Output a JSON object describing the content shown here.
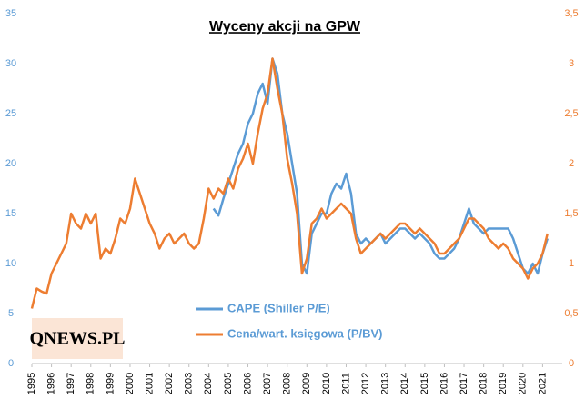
{
  "chart_data": {
    "type": "line",
    "title": "Wyceny akcji na GPW",
    "watermark": "QNEWS.PL",
    "x": [
      1995,
      1995.25,
      1995.5,
      1995.75,
      1996,
      1996.25,
      1996.5,
      1996.75,
      1997,
      1997.25,
      1997.5,
      1997.75,
      1998,
      1998.25,
      1998.5,
      1998.75,
      1999,
      1999.25,
      1999.5,
      1999.75,
      2000,
      2000.25,
      2000.5,
      2000.75,
      2001,
      2001.25,
      2001.5,
      2001.75,
      2002,
      2002.25,
      2002.5,
      2002.75,
      2003,
      2003.25,
      2003.5,
      2003.75,
      2004,
      2004.25,
      2004.5,
      2004.75,
      2005,
      2005.25,
      2005.5,
      2005.75,
      2006,
      2006.25,
      2006.5,
      2006.75,
      2007,
      2007.25,
      2007.5,
      2007.75,
      2008,
      2008.25,
      2008.5,
      2008.75,
      2009,
      2009.25,
      2009.5,
      2009.75,
      2010,
      2010.25,
      2010.5,
      2010.75,
      2011,
      2011.25,
      2011.5,
      2011.75,
      2012,
      2012.25,
      2012.5,
      2012.75,
      2013,
      2013.25,
      2013.5,
      2013.75,
      2014,
      2014.25,
      2014.5,
      2014.75,
      2015,
      2015.25,
      2015.5,
      2015.75,
      2016,
      2016.25,
      2016.5,
      2016.75,
      2017,
      2017.25,
      2017.5,
      2017.75,
      2018,
      2018.25,
      2018.5,
      2018.75,
      2019,
      2019.25,
      2019.5,
      2019.75,
      2020,
      2020.25,
      2020.5,
      2020.75,
      2021,
      2021.25
    ],
    "series": [
      {
        "name": "CAPE (Shiller P/E)",
        "color": "#5b9bd5",
        "axis": "y",
        "values": [
          null,
          null,
          null,
          null,
          null,
          null,
          null,
          null,
          null,
          null,
          null,
          null,
          null,
          null,
          null,
          null,
          null,
          null,
          null,
          null,
          null,
          null,
          null,
          null,
          null,
          null,
          null,
          null,
          null,
          null,
          null,
          null,
          null,
          null,
          null,
          null,
          null,
          15.5,
          14.8,
          16.5,
          18,
          19.5,
          21,
          22,
          24,
          25,
          27,
          28,
          26,
          30.5,
          29,
          25,
          23,
          20,
          17,
          10,
          9,
          13,
          14,
          15,
          15,
          17,
          18,
          17.5,
          19,
          17,
          13,
          12,
          12.5,
          12,
          12.5,
          13,
          12,
          12.5,
          13,
          13.5,
          13.5,
          13,
          12.5,
          13,
          12.5,
          12,
          11,
          10.5,
          10.5,
          11,
          11.5,
          12.5,
          14,
          15.5,
          14,
          13.5,
          13,
          13.5,
          13.5,
          13.5,
          13.5,
          13.5,
          12.5,
          11,
          9.5,
          9,
          10,
          9,
          11,
          12.5
        ]
      },
      {
        "name": "Cena/wart. księgowa (P/BV)",
        "color": "#ed7d31",
        "axis": "y2",
        "values": [
          0.55,
          0.75,
          0.72,
          0.7,
          0.9,
          1.0,
          1.1,
          1.2,
          1.5,
          1.4,
          1.35,
          1.5,
          1.4,
          1.5,
          1.05,
          1.15,
          1.1,
          1.25,
          1.45,
          1.4,
          1.55,
          1.85,
          1.7,
          1.55,
          1.4,
          1.3,
          1.15,
          1.25,
          1.3,
          1.2,
          1.25,
          1.3,
          1.2,
          1.15,
          1.2,
          1.45,
          1.75,
          1.65,
          1.75,
          1.7,
          1.85,
          1.75,
          1.95,
          2.05,
          2.2,
          2.0,
          2.3,
          2.55,
          2.7,
          3.05,
          2.75,
          2.5,
          2.05,
          1.8,
          1.5,
          0.9,
          1.05,
          1.4,
          1.45,
          1.55,
          1.45,
          1.5,
          1.55,
          1.6,
          1.55,
          1.5,
          1.25,
          1.1,
          1.15,
          1.2,
          1.25,
          1.3,
          1.25,
          1.3,
          1.35,
          1.4,
          1.4,
          1.35,
          1.3,
          1.35,
          1.3,
          1.25,
          1.2,
          1.1,
          1.1,
          1.15,
          1.2,
          1.25,
          1.35,
          1.45,
          1.45,
          1.4,
          1.35,
          1.25,
          1.2,
          1.15,
          1.2,
          1.15,
          1.05,
          1.0,
          0.95,
          0.85,
          0.95,
          1.0,
          1.1,
          1.3
        ]
      }
    ],
    "xlim": [
      1995,
      2022
    ],
    "xticks": [
      1995,
      1996,
      1997,
      1998,
      1999,
      2000,
      2001,
      2002,
      2003,
      2004,
      2005,
      2006,
      2007,
      2008,
      2009,
      2010,
      2011,
      2012,
      2013,
      2014,
      2015,
      2016,
      2017,
      2018,
      2019,
      2020,
      2021
    ],
    "ylim": [
      0,
      35
    ],
    "yticks": [
      0,
      5,
      10,
      15,
      20,
      25,
      30,
      35
    ],
    "y2lim": [
      0,
      3.5
    ],
    "y2ticks": [
      0,
      {
        "value": 0.5,
        "label": "0,5"
      },
      1,
      {
        "value": 1.5,
        "label": "1,5"
      },
      2,
      {
        "value": 2.5,
        "label": "2,5"
      },
      3,
      {
        "value": 3.5,
        "label": "3,5"
      }
    ]
  }
}
